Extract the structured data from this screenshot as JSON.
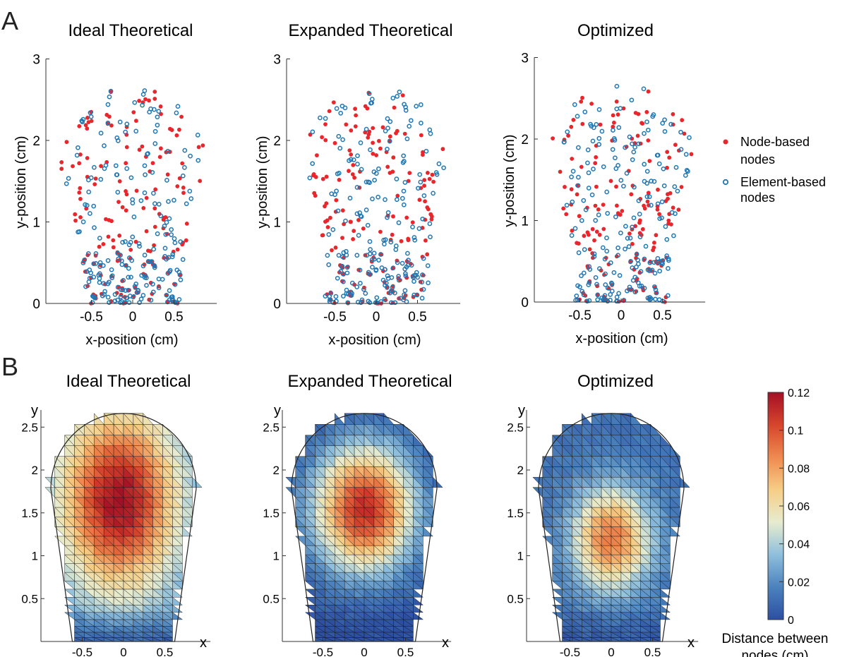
{
  "panels": {
    "A": {
      "letter": "A"
    },
    "B": {
      "letter": "B"
    }
  },
  "chart_data": [
    {
      "type": "scatter",
      "panel": "A",
      "title": "Ideal Theoretical",
      "xlabel": "x-position (cm)",
      "ylabel": "y-position (cm)",
      "xticks": [
        -0.5,
        0,
        0.5
      ],
      "yticks": [
        0,
        1,
        2,
        3
      ],
      "xlim": [
        -0.95,
        0.95
      ],
      "ylim": [
        0,
        3
      ],
      "series": [
        {
          "name": "Node-based nodes",
          "marker": "filled-dot",
          "color": "#e8262b"
        },
        {
          "name": "Element-based nodes",
          "marker": "open-circle",
          "color": "#1f77b4"
        }
      ],
      "shape": {
        "stem_half_width": 0.57,
        "head_center_y": 1.75,
        "head_radius": 0.9
      }
    },
    {
      "type": "scatter",
      "panel": "A",
      "title": "Expanded Theoretical",
      "xlabel": "x-position (cm)",
      "ylabel": "y-position (cm)",
      "xticks": [
        -0.5,
        0,
        0.5
      ],
      "yticks": [
        0,
        1,
        2,
        3
      ],
      "xlim": [
        -0.95,
        0.95
      ],
      "ylim": [
        0,
        3
      ],
      "series": [
        {
          "name": "Node-based nodes",
          "marker": "filled-dot",
          "color": "#e8262b"
        },
        {
          "name": "Element-based nodes",
          "marker": "open-circle",
          "color": "#1f77b4"
        }
      ],
      "shape": {
        "stem_half_width": 0.6,
        "head_center_y": 1.8,
        "head_radius": 0.86
      }
    },
    {
      "type": "scatter",
      "panel": "A",
      "title": "Optimized",
      "xlabel": "x-position (cm)",
      "ylabel": "y-position (cm)",
      "xticks": [
        -0.5,
        0,
        0.5
      ],
      "yticks": [
        0,
        1,
        2,
        3
      ],
      "xlim": [
        -0.95,
        0.95
      ],
      "ylim": [
        0,
        3
      ],
      "series": [
        {
          "name": "Node-based nodes",
          "marker": "filled-dot",
          "color": "#e8262b"
        },
        {
          "name": "Element-based nodes",
          "marker": "open-circle",
          "color": "#1f77b4"
        }
      ],
      "shape": {
        "stem_half_width": 0.55,
        "head_center_y": 1.8,
        "head_radius": 0.87
      }
    },
    {
      "type": "heatmap",
      "panel": "B",
      "title": "Ideal Theoretical",
      "xlabel": "x",
      "ylabel": "y",
      "xticks": [
        -0.5,
        0,
        0.5
      ],
      "yticks": [
        0.5,
        1,
        1.5,
        2,
        2.5
      ],
      "xlim": [
        -0.95,
        0.95
      ],
      "ylim": [
        0,
        2.7
      ],
      "peak": {
        "x": -0.05,
        "y": 1.65,
        "value": 0.12
      }
    },
    {
      "type": "heatmap",
      "panel": "B",
      "title": "Expanded Theoretical",
      "xlabel": "x",
      "ylabel": "y",
      "xticks": [
        -0.5,
        0,
        0.5
      ],
      "yticks": [
        0.5,
        1,
        1.5,
        2,
        2.5
      ],
      "xlim": [
        -0.95,
        0.95
      ],
      "ylim": [
        0,
        2.7
      ],
      "peak": {
        "x": 0.0,
        "y": 1.55,
        "value": 0.11
      }
    },
    {
      "type": "heatmap",
      "panel": "B",
      "title": "Optimized",
      "xlabel": "x",
      "ylabel": "y",
      "xticks": [
        -0.5,
        0,
        0.5
      ],
      "yticks": [
        0.5,
        1,
        1.5,
        2,
        2.5
      ],
      "xlim": [
        -0.95,
        0.95
      ],
      "ylim": [
        0,
        2.7
      ],
      "peak": {
        "x": 0.0,
        "y": 1.2,
        "value": 0.09
      }
    }
  ],
  "legend": {
    "node_based": {
      "line1": "Node-based",
      "line2": "nodes",
      "color": "#e8262b"
    },
    "element_based": {
      "line1": "Element-based",
      "line2": "nodes",
      "color": "#1f77b4"
    }
  },
  "colorbar": {
    "ticks": [
      "0.12",
      "0.1",
      "0.08",
      "0.06",
      "0.04",
      "0.02",
      "0"
    ],
    "label_line1": "Distance between",
    "label_line2": "nodes (cm)",
    "range": [
      0,
      0.12
    ],
    "colors": [
      "#2c4fa2",
      "#4b82bd",
      "#8fbfdc",
      "#e7eccf",
      "#f6ce86",
      "#ef8a4f",
      "#d6452c",
      "#a50f25"
    ]
  }
}
